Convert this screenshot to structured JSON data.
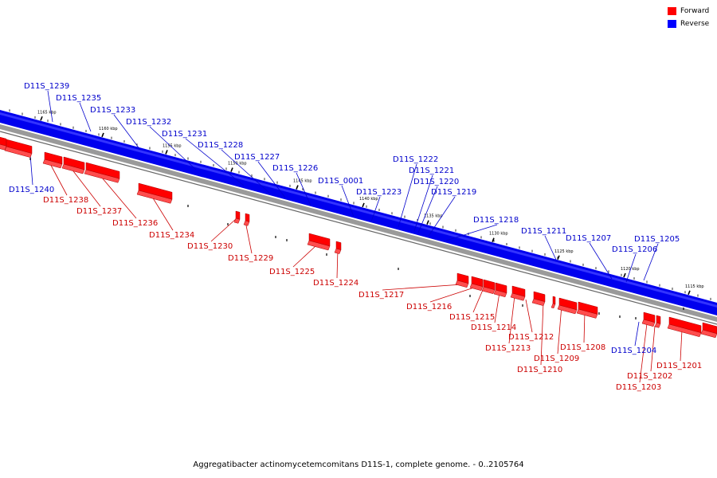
{
  "legend": {
    "forward": {
      "label": "Forward",
      "color": "#ff0000"
    },
    "reverse": {
      "label": "Reverse",
      "color": "#0000ff"
    }
  },
  "caption": "Aggregatibacter actinomycetemcomitans D11S-1, complete genome. - 0..2105764",
  "colors": {
    "forward_label": "#cc0000",
    "reverse_label": "#0000cc",
    "genome_band": "#0000ee"
  },
  "scale_ticks": [
    "1165 kbp",
    "1160 kbp",
    "1155 kbp",
    "1150 kbp",
    "1145 kbp",
    "1140 kbp",
    "1135 kbp",
    "1130 kbp",
    "1125 kbp",
    "1120 kbp",
    "1115 kbp"
  ],
  "reverse_genes": [
    "D11S_1239",
    "D11S_1235",
    "D11S_1233",
    "D11S_1232",
    "D11S_1231",
    "D11S_1228",
    "D11S_1227",
    "D11S_1226",
    "D11S_0001",
    "D11S_1223",
    "D11S_1222",
    "D11S_1221",
    "D11S_1220",
    "D11S_1219",
    "D11S_1218",
    "D11S_1211",
    "D11S_1207",
    "D11S_1205",
    "D11S_1206",
    "D11S_1240",
    "D11S_1204"
  ],
  "forward_genes": [
    "D11S_1238",
    "D11S_1237",
    "D11S_1236",
    "D11S_1234",
    "D11S_1230",
    "D11S_1229",
    "D11S_1225",
    "D11S_1224",
    "D11S_1217",
    "D11S_1216",
    "D11S_1215",
    "D11S_1214",
    "D11S_1212",
    "D11S_1213",
    "D11S_1209",
    "D11S_1210",
    "D11S_1208",
    "D11S_1201",
    "D11S_1202",
    "D11S_1203"
  ]
}
